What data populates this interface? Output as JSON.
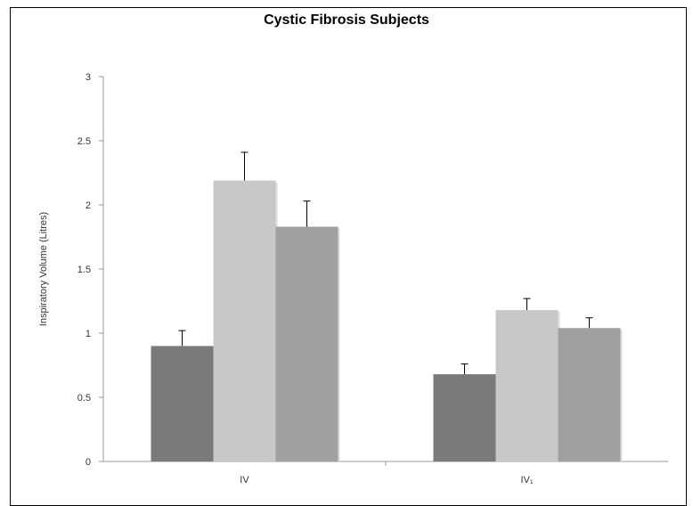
{
  "chart_data": {
    "type": "bar",
    "title": "Cystic Fibrosis Subjects",
    "xlabel": "",
    "ylabel": "Inspiratory Volume (Litres)",
    "categories": [
      "IV",
      "IV₁"
    ],
    "ylim": [
      0,
      3
    ],
    "yticks": [
      "0",
      "0.5",
      "1",
      "1.5",
      "2",
      "2.5",
      "3"
    ],
    "series": [
      {
        "values": [
          0.9,
          0.68
        ],
        "errors": [
          0.12,
          0.08
        ],
        "color": "#7a7a7a"
      },
      {
        "values": [
          2.19,
          1.18
        ],
        "errors": [
          0.22,
          0.09
        ],
        "color": "#c8c8c8"
      },
      {
        "values": [
          1.83,
          1.04
        ],
        "errors": [
          0.2,
          0.08
        ],
        "color": "#a0a0a0"
      }
    ],
    "legend": "none",
    "grid": false,
    "error_bars": "upper"
  }
}
